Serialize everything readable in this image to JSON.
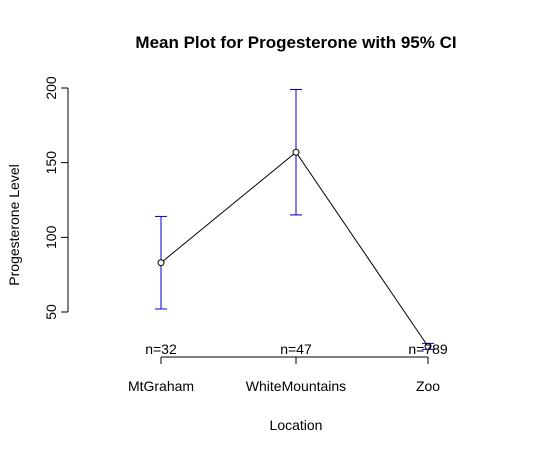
{
  "chart_data": {
    "type": "line",
    "title": "Mean Plot for Progesterone with 95% CI",
    "xlabel": "Location",
    "ylabel": "Progesterone Level",
    "categories": [
      "MtGraham",
      "WhiteMountains",
      "Zoo"
    ],
    "means": [
      83,
      157,
      27
    ],
    "ci_lower": [
      52,
      115,
      25
    ],
    "ci_upper": [
      114,
      199,
      29
    ],
    "n_labels": [
      "n=32",
      "n=47",
      "n=789"
    ],
    "yticks": [
      50,
      100,
      150,
      200
    ],
    "ylim": [
      20,
      205
    ],
    "grid": false,
    "colors": {
      "ci": "#0000cc",
      "line": "#000000"
    }
  }
}
